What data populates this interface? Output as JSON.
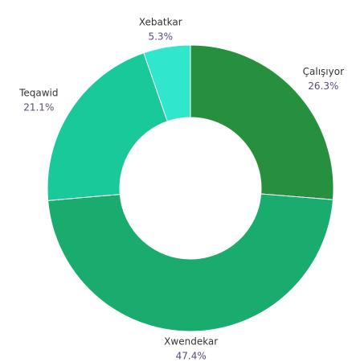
{
  "chart_data": {
    "type": "donut",
    "categories": [
      "Çalışıyor",
      "Xwendekar",
      "Teqawid",
      "Xebatkar"
    ],
    "values": [
      26.3,
      47.4,
      21.1,
      5.3
    ],
    "value_labels": [
      "26.3%",
      "47.4%",
      "21.1%",
      "5.3%"
    ],
    "colors": [
      "#27903e",
      "#1aab6e",
      "#1ac99a",
      "#30e6cc"
    ]
  }
}
